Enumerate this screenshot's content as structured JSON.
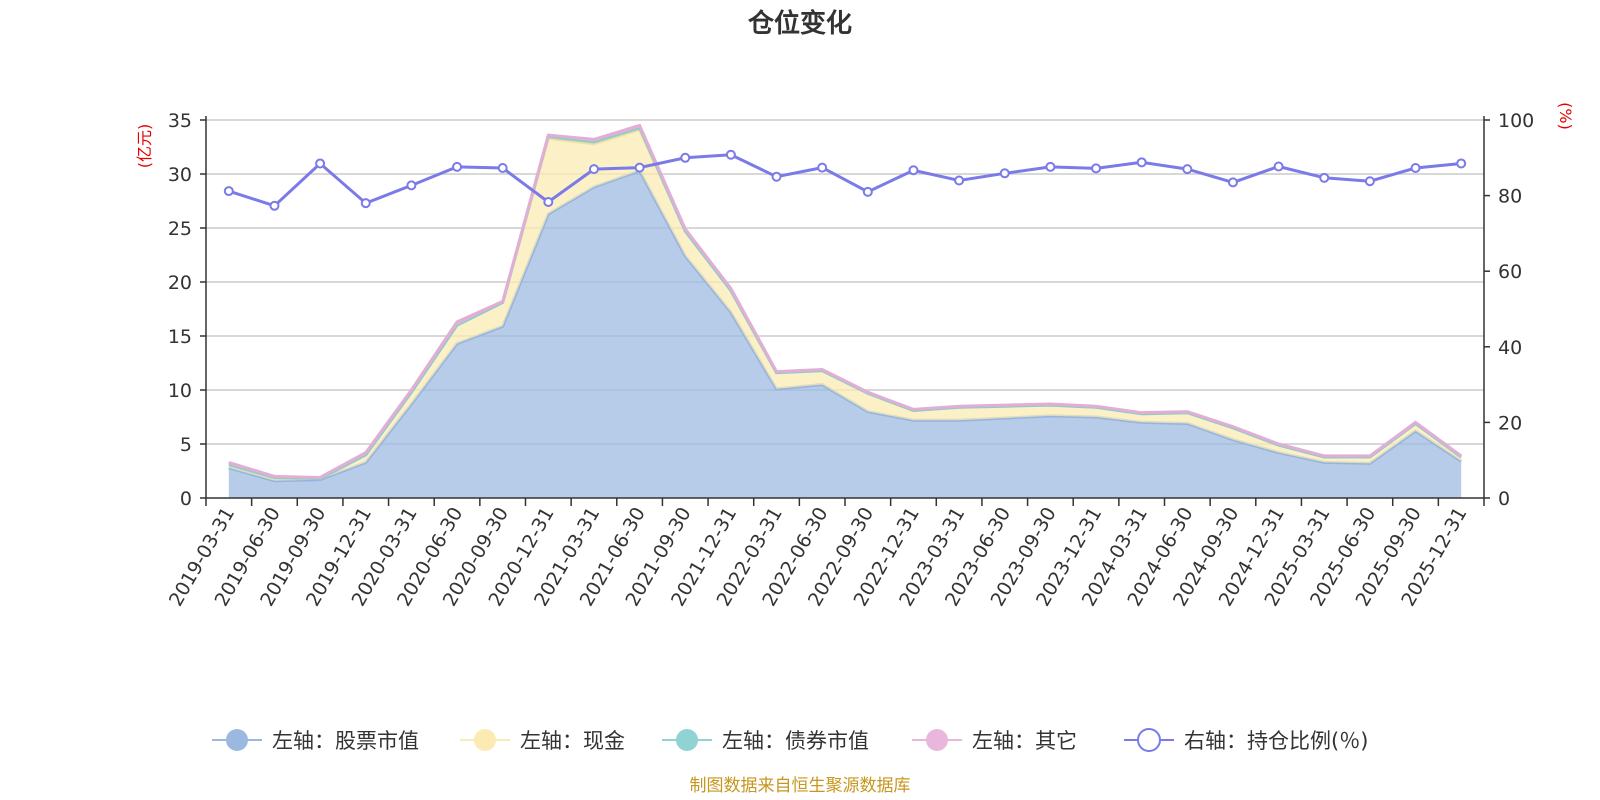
{
  "chart_data": {
    "type": "area",
    "title": "仓位变化",
    "source": "制图数据来自恒生聚源数据库",
    "left_axis": {
      "unit": "(亿元)",
      "ylim": [
        0,
        35
      ],
      "ticks": [
        "0",
        "5",
        "10",
        "15",
        "20",
        "25",
        "30",
        "35"
      ]
    },
    "right_axis": {
      "unit": "(%)",
      "ylim": [
        0,
        100
      ],
      "ticks": [
        "0",
        "20",
        "40",
        "60",
        "80",
        "100"
      ]
    },
    "grid": true,
    "legend_position": "bottom",
    "categories": [
      "2019-03-31",
      "2019-06-30",
      "2019-09-30",
      "2019-12-31",
      "2020-03-31",
      "2020-06-30",
      "2020-09-30",
      "2020-12-31",
      "2021-03-31",
      "2021-06-30",
      "2021-09-30",
      "2021-12-31",
      "2022-03-31",
      "2022-06-30",
      "2022-09-30",
      "2022-12-31",
      "2023-03-31",
      "2023-06-30",
      "2023-09-30",
      "2023-12-31",
      "2024-03-31",
      "2024-06-30",
      "2024-09-30",
      "2024-12-31",
      "2025-03-31",
      "2025-06-30",
      "2025-09-30",
      "2025-12-31"
    ],
    "series": [
      {
        "name": "左轴：股票市值",
        "axis": "left",
        "type": "area",
        "color": "#9bb8e0",
        "values": [
          2.8,
          1.6,
          1.7,
          3.3,
          8.7,
          14.3,
          15.9,
          26.3,
          28.8,
          30.3,
          22.4,
          17.2,
          10.1,
          10.5,
          8.0,
          7.2,
          7.2,
          7.4,
          7.6,
          7.5,
          7.0,
          6.9,
          5.4,
          4.2,
          3.3,
          3.2,
          6.2,
          3.4
        ]
      },
      {
        "name": "左轴：现金",
        "axis": "left",
        "type": "area",
        "color": "#fbeab2",
        "values": [
          0.3,
          0.3,
          0.1,
          0.7,
          1.1,
          1.7,
          2.2,
          7.0,
          4.0,
          3.8,
          2.3,
          2.0,
          1.5,
          1.3,
          1.7,
          0.9,
          1.2,
          1.1,
          1.0,
          0.9,
          0.8,
          1.0,
          1.1,
          0.7,
          0.5,
          0.6,
          0.7,
          0.4
        ]
      },
      {
        "name": "左轴：债券市值",
        "axis": "left",
        "type": "area",
        "color": "#91d2d2",
        "values": [
          0,
          0,
          0,
          0,
          0,
          0,
          0,
          0.2,
          0.2,
          0.2,
          0,
          0,
          0,
          0,
          0,
          0,
          0,
          0,
          0,
          0,
          0,
          0,
          0,
          0,
          0,
          0,
          0,
          0
        ]
      },
      {
        "name": "左轴：其它",
        "axis": "left",
        "type": "area",
        "color": "#e9b6dc",
        "values": [
          0.2,
          0.1,
          0.1,
          0.2,
          0.2,
          0.3,
          0.1,
          0.1,
          0.2,
          0.2,
          0.2,
          0.2,
          0.1,
          0.1,
          0.1,
          0.1,
          0.1,
          0.1,
          0.1,
          0.1,
          0.1,
          0.1,
          0.1,
          0.1,
          0.1,
          0.1,
          0.1,
          0.1
        ]
      },
      {
        "name": "右轴：持仓比例(％)",
        "axis": "right",
        "type": "line",
        "color": "#7a7ae8",
        "values": [
          81.2,
          77.3,
          88.5,
          78.0,
          82.7,
          87.6,
          87.3,
          78.3,
          87.0,
          87.4,
          90.0,
          90.8,
          85.0,
          87.4,
          81.0,
          86.7,
          84.0,
          85.9,
          87.6,
          87.2,
          88.8,
          87.0,
          83.5,
          87.7,
          84.7,
          83.8,
          87.3,
          88.5
        ]
      }
    ]
  }
}
